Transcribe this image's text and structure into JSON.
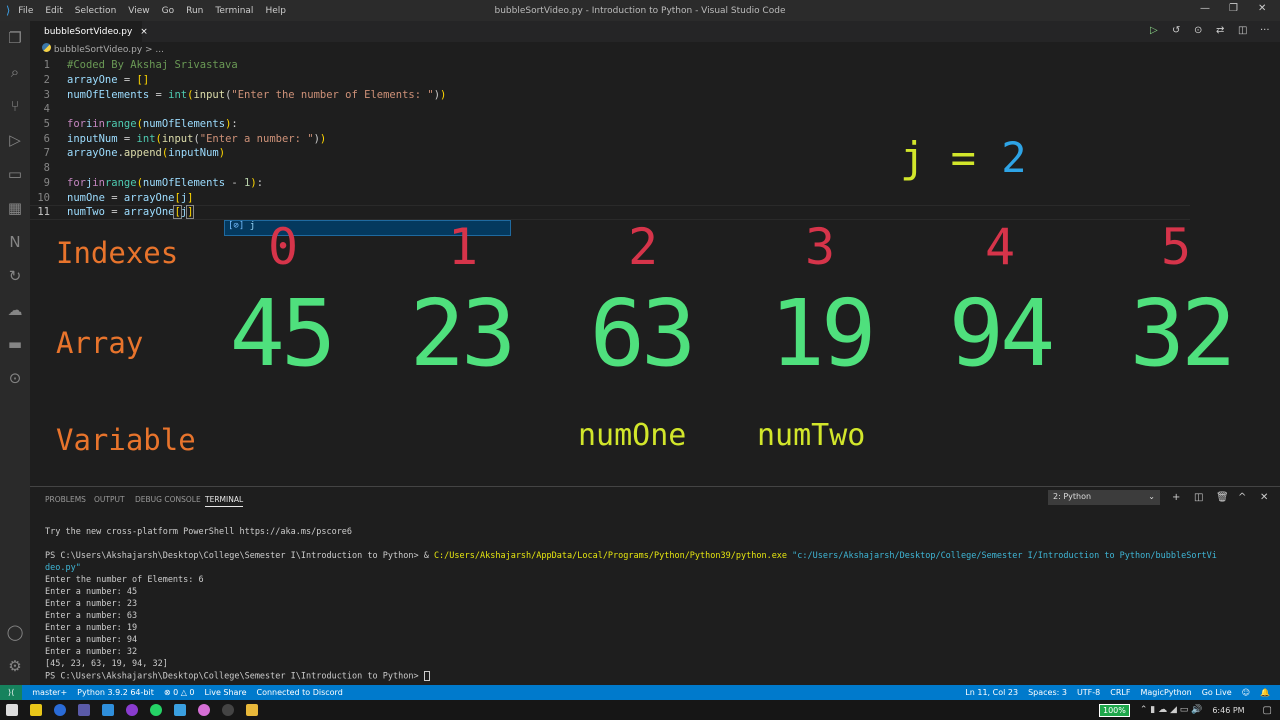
{
  "titlebar": {
    "menu": [
      "File",
      "Edit",
      "Selection",
      "View",
      "Go",
      "Run",
      "Terminal",
      "Help"
    ],
    "title": "bubbleSortVideo.py - Introduction to Python - Visual Studio Code"
  },
  "tab": {
    "label": "bubbleSortVideo.py",
    "close": "×"
  },
  "breadcrumb": "bubbleSortVideo.py > ...",
  "code": {
    "lines": [
      "1",
      "2",
      "3",
      "4",
      "5",
      "6",
      "7",
      "8",
      "9",
      "10",
      "11"
    ]
  },
  "suggest": "j",
  "overlay": {
    "j_label": "j",
    "eq": "=",
    "j_value": "2",
    "indexes_label": "Indexes",
    "array_label": "Array",
    "variable_label": "Variable",
    "indexes": [
      "0",
      "1",
      "2",
      "3",
      "4",
      "5"
    ],
    "values": [
      "45",
      "23",
      "63",
      "19",
      "94",
      "32"
    ],
    "num_one": "numOne",
    "num_two": "numTwo"
  },
  "panel": {
    "tabs": [
      "PROBLEMS",
      "OUTPUT",
      "DEBUG CONSOLE",
      "TERMINAL"
    ],
    "terminal_select": "2: Python"
  },
  "terminal": {
    "l1": "Try the new cross-platform PowerShell https://aka.ms/pscore6",
    "l2a": "PS C:\\Users\\Akshajarsh\\Desktop\\College\\Semester I\\Introduction to Python> & ",
    "l2b": "C:/Users/Akshajarsh/AppData/Local/Programs/Python/Python39/python.exe",
    "l2c": " \"c:/Users/Akshajarsh/Desktop/College/Semester I/Introduction to Python/bubbleSortVi",
    "l3": "deo.py\"",
    "out": [
      "Enter the number of Elements: 6",
      "Enter a number: 45",
      "Enter a number: 23",
      "Enter a number: 63",
      "Enter a number: 19",
      "Enter a number: 94",
      "Enter a number: 32",
      "[45, 23, 63, 19, 94, 32]"
    ],
    "prompt": "PS C:\\Users\\Akshajarsh\\Desktop\\College\\Semester I\\Introduction to Python> "
  },
  "status": {
    "left": [
      "master+",
      "Python 3.9.2 64-bit",
      "⊗ 0 △ 0",
      "Live Share",
      "Connected to Discord"
    ],
    "right": [
      "Ln 11, Col 23",
      "Spaces: 3",
      "UTF-8",
      "CRLF",
      "MagicPython",
      "Go Live"
    ]
  },
  "taskbar": {
    "battery": "100%",
    "time": "6:46 PM"
  },
  "colors": {
    "status_bar": "#007acc",
    "array_values": "#4fe07d",
    "indexes": "#d6344a",
    "labels": "#e8742c",
    "variables": "#d2e62b"
  }
}
